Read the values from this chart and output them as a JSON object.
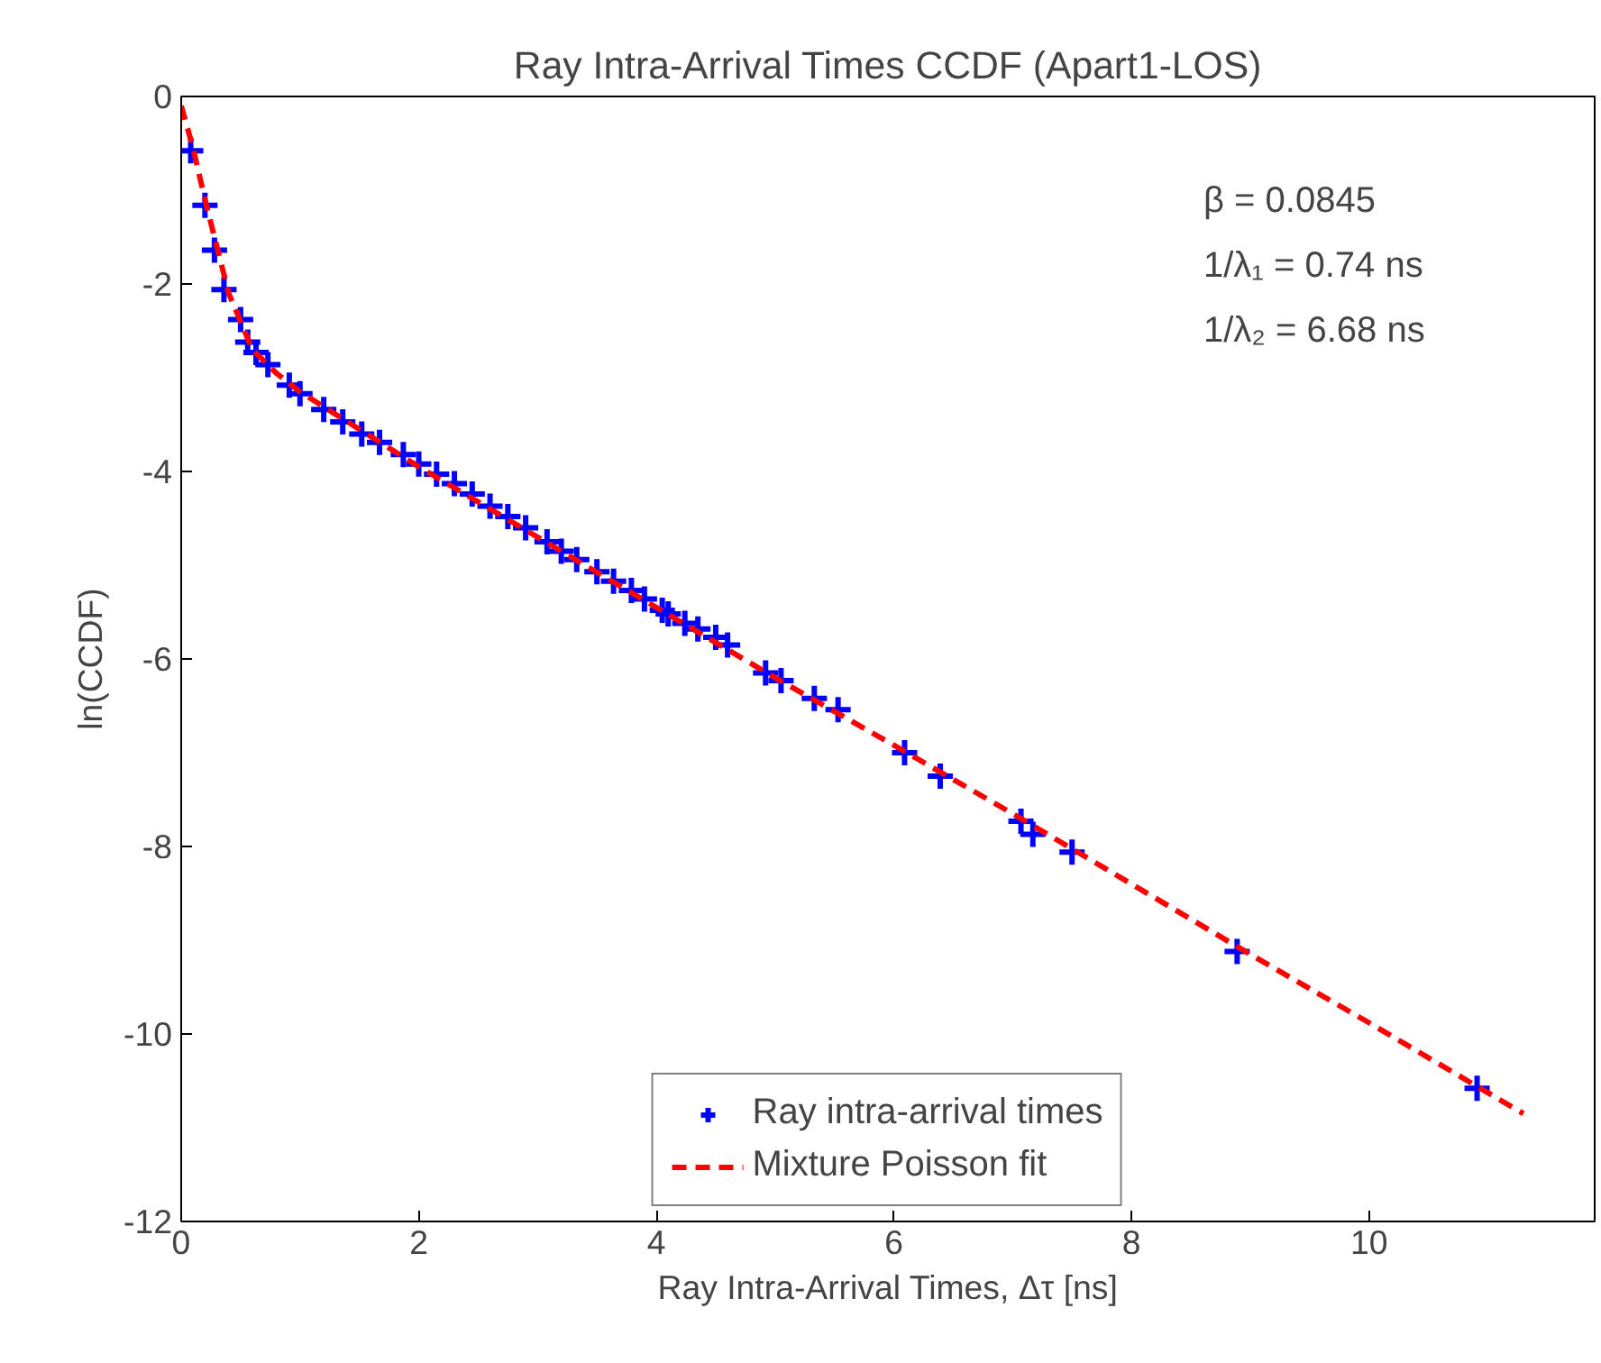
{
  "chart_data": {
    "type": "scatter",
    "title": "Ray Intra-Arrival Times CCDF (Apart1-LOS)",
    "xlabel": "Ray Intra-Arrival Times, Δτ [ns]",
    "ylabel": "ln(CCDF)",
    "xlim": [
      0,
      11.9
    ],
    "ylim": [
      -12,
      0
    ],
    "xticks": [
      0,
      2,
      4,
      6,
      8,
      10
    ],
    "yticks": [
      -12,
      -10,
      -8,
      -6,
      -4,
      -2,
      0
    ],
    "grid": false,
    "legend": "bottom",
    "annotations": [
      "β = 0.0845",
      "1/λ₁ = 0.74 ns",
      "1/λ₂ = 6.68 ns"
    ],
    "series": [
      {
        "name": "Ray intra-arrival times",
        "color": "#0000ff",
        "marker": "cross",
        "x": [
          0.08,
          0.2,
          0.28,
          0.36,
          0.5,
          0.56,
          0.63,
          0.73,
          0.91,
          1.0,
          1.2,
          1.36,
          1.52,
          1.67,
          1.87,
          2.0,
          2.15,
          2.3,
          2.45,
          2.6,
          2.75,
          2.9,
          3.08,
          3.2,
          3.33,
          3.5,
          3.64,
          3.79,
          3.9,
          4.05,
          4.1,
          4.24,
          4.35,
          4.5,
          4.6,
          4.92,
          5.05,
          5.33,
          5.53,
          6.09,
          6.39,
          7.07,
          7.17,
          7.5,
          8.89,
          10.91
        ],
        "values": [
          -0.58,
          -1.16,
          -1.64,
          -2.06,
          -2.38,
          -2.62,
          -2.73,
          -2.86,
          -3.08,
          -3.17,
          -3.34,
          -3.47,
          -3.6,
          -3.69,
          -3.82,
          -3.92,
          -4.03,
          -4.13,
          -4.24,
          -4.37,
          -4.48,
          -4.6,
          -4.75,
          -4.85,
          -4.94,
          -5.07,
          -5.17,
          -5.27,
          -5.36,
          -5.48,
          -5.52,
          -5.62,
          -5.68,
          -5.77,
          -5.85,
          -6.15,
          -6.23,
          -6.42,
          -6.54,
          -7.0,
          -7.25,
          -7.73,
          -7.87,
          -8.06,
          -9.12,
          -10.58
        ]
      },
      {
        "name": "Mixture Poisson fit",
        "type": "line",
        "color": "#ff0000",
        "line_style": "dashed",
        "x": [
          0,
          0.1,
          0.2,
          0.3,
          0.4,
          0.5,
          0.6,
          0.8,
          1.0,
          1.5,
          2,
          3,
          4,
          5,
          6,
          7,
          8,
          9,
          10,
          11.3
        ],
        "values": [
          -0.1,
          -0.55,
          -1.1,
          -1.6,
          -2.1,
          -2.4,
          -2.7,
          -2.95,
          -3.15,
          -3.55,
          -3.95,
          -4.7,
          -5.45,
          -6.2,
          -6.92,
          -7.65,
          -8.4,
          -9.15,
          -9.88,
          -10.85
        ]
      }
    ]
  }
}
